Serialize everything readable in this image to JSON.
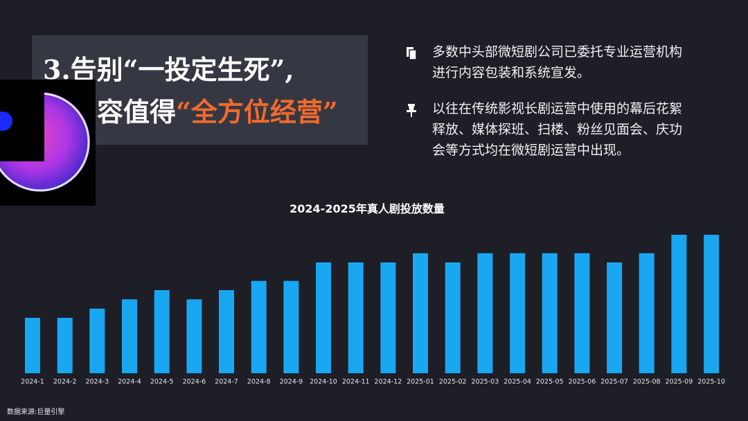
{
  "title": {
    "line1_prefix": "3.告别“一投定生死”,",
    "line2_prefix": "容值得",
    "line2_accent": "“全方位经营”"
  },
  "colors": {
    "accent": "#f26a2e",
    "bar": "#1aa7f2",
    "background": "#1d1e26",
    "title_box": "#353842"
  },
  "bullets": [
    {
      "icon": "document-icon",
      "text": "多数中头部微短剧公司已委托专业运营机构进行内容包装和系统宣发。"
    },
    {
      "icon": "pin-icon",
      "text": "以往在传统影视长剧运营中使用的幕后花絮释放、媒体探班、扫楼、粉丝见面会、庆功会等方式均在微短剧运营中出现。"
    }
  ],
  "chart_data": {
    "type": "bar",
    "title": "2024-2025年真人剧投放数量",
    "categories": [
      "2024-1",
      "2024-2",
      "2024-3",
      "2024-4",
      "2024-5",
      "2024-6",
      "2024-7",
      "2024-8",
      "2024-9",
      "2024-10",
      "2024-11",
      "2024-12",
      "2025-01",
      "2025-02",
      "2025-03",
      "2025-04",
      "2025-05",
      "2025-06",
      "2025-07",
      "2025-08",
      "2025-09",
      "2025-10"
    ],
    "values": [
      6,
      6,
      7,
      8,
      9,
      8,
      9,
      10,
      10,
      12,
      12,
      12,
      13,
      12,
      13,
      13,
      13,
      13,
      12,
      13,
      15,
      15
    ],
    "xlabel": "",
    "ylabel": "",
    "ylim": [
      0,
      15
    ],
    "grid": false,
    "legend": "none"
  },
  "source": "数据来源:巨量引擎"
}
